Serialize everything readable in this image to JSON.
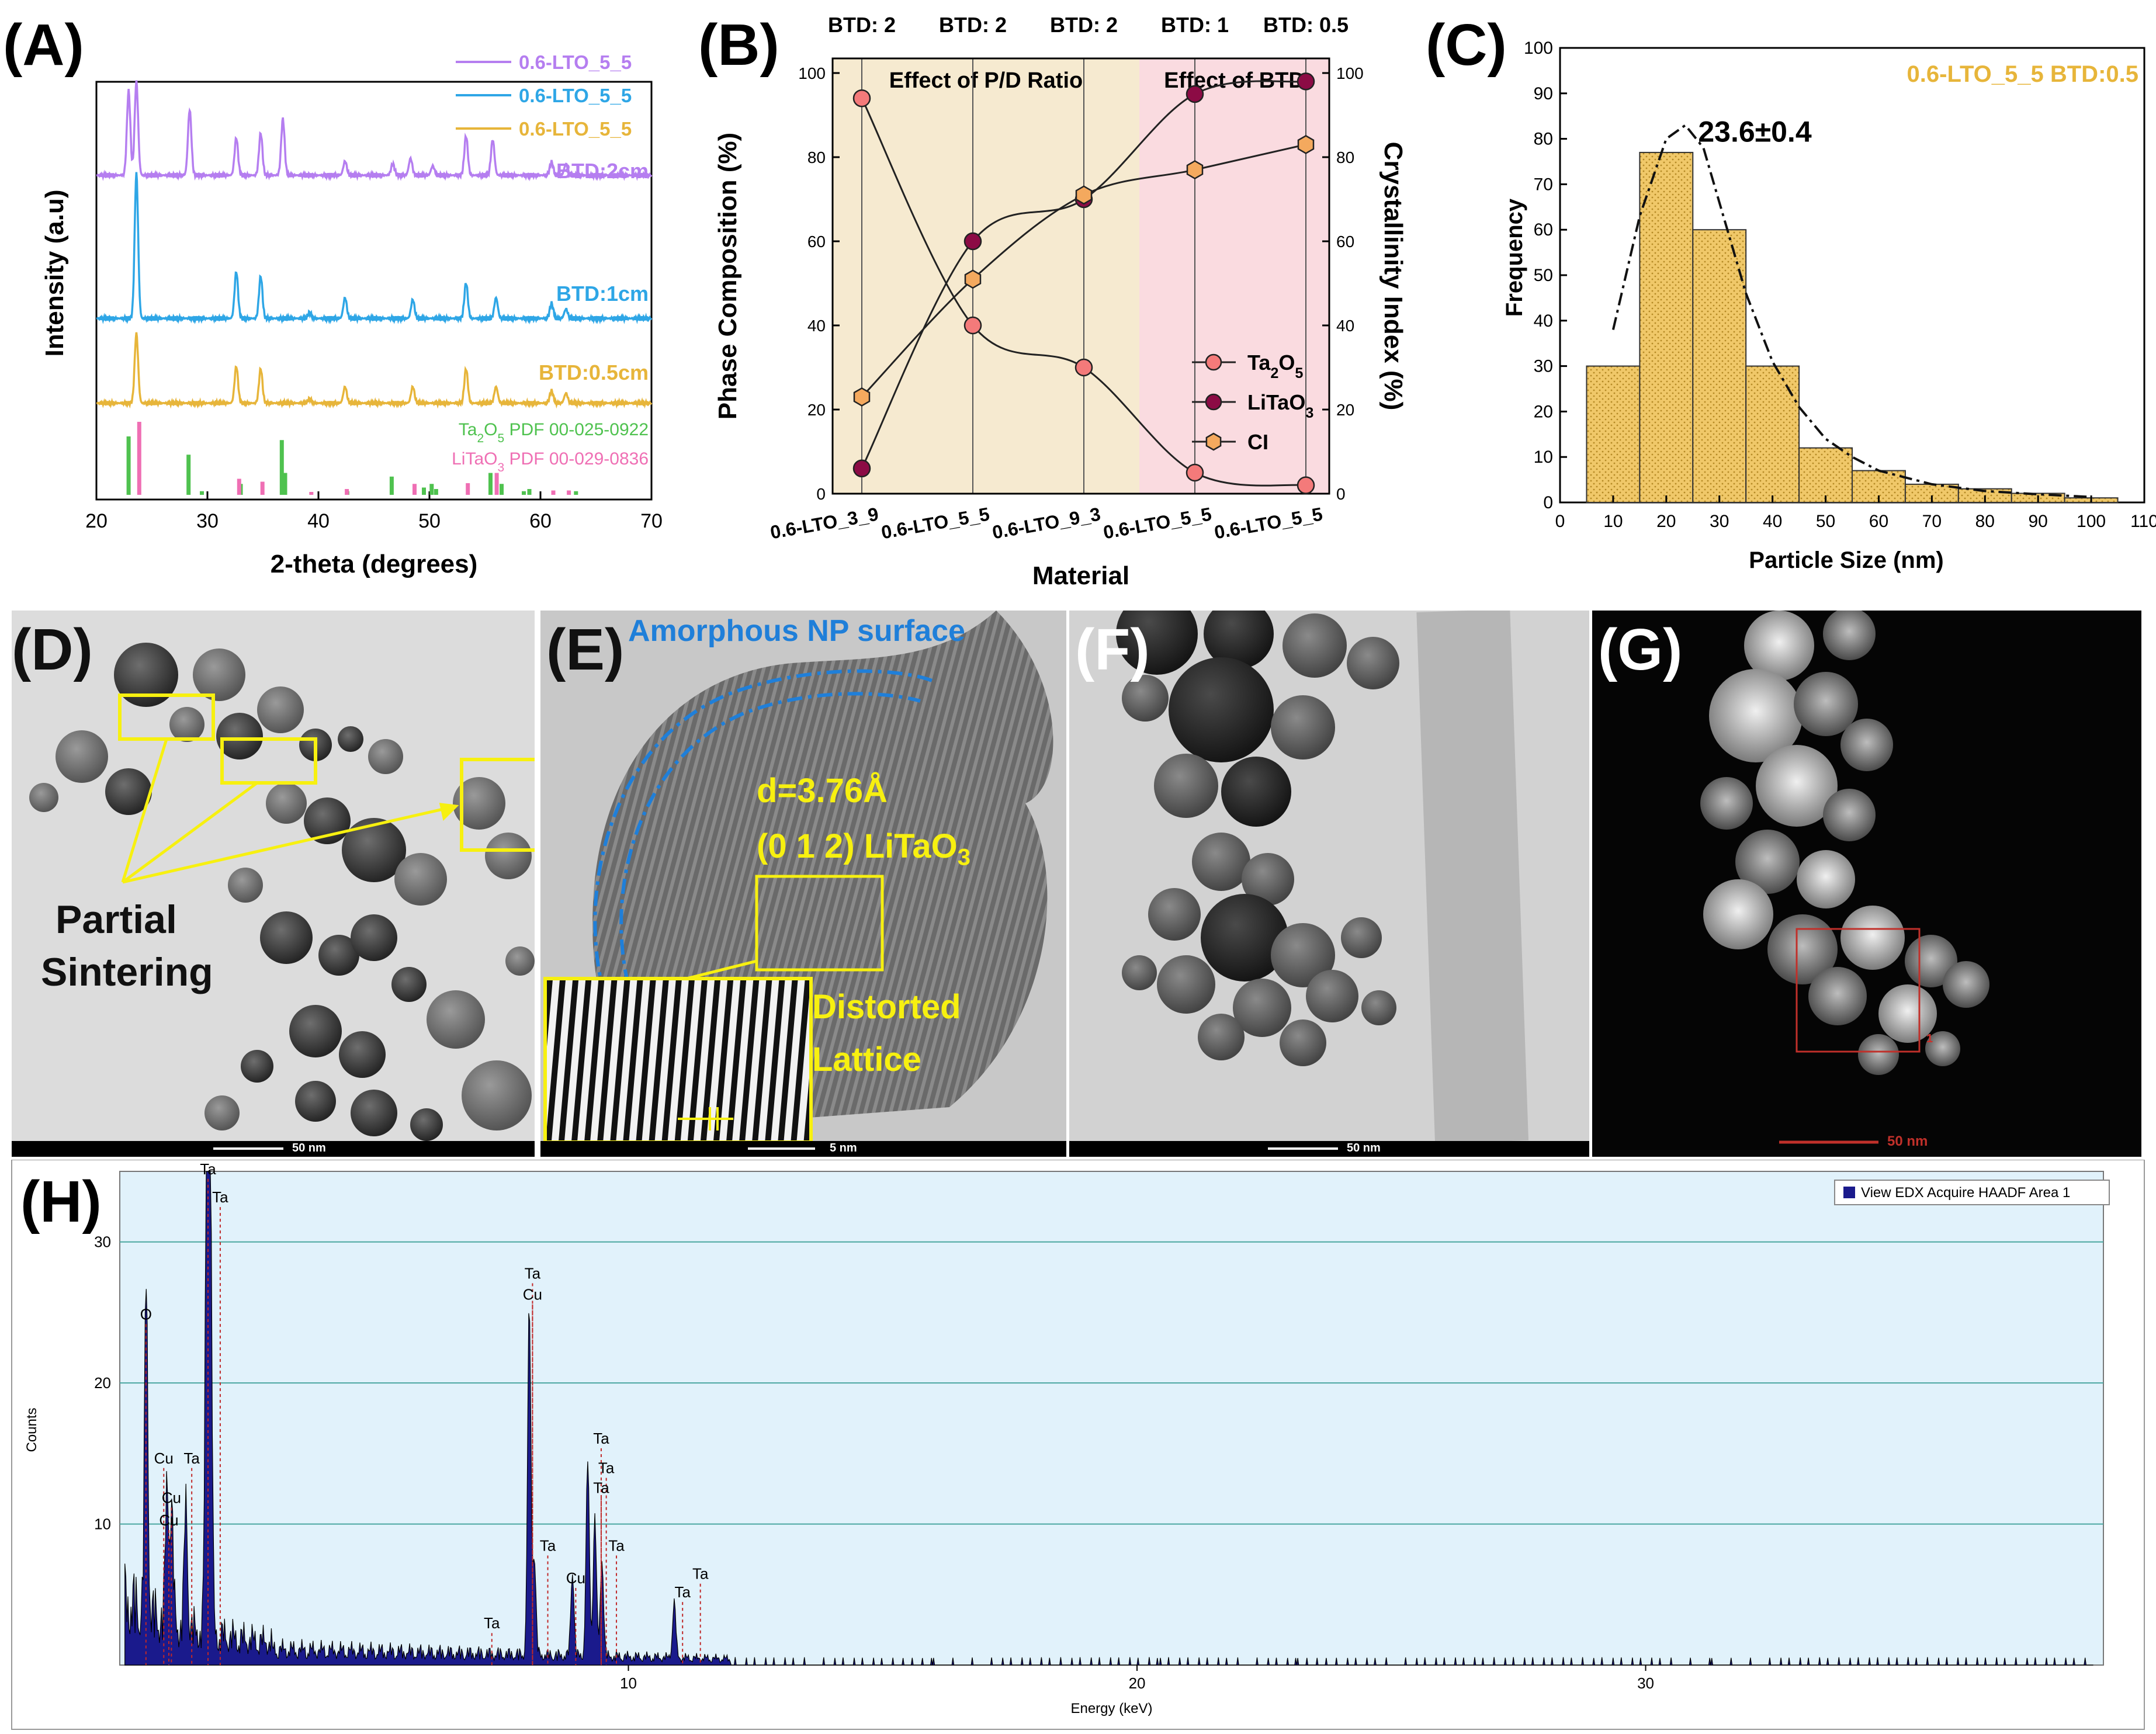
{
  "panel_labels": {
    "A": "(A)",
    "B": "(B)",
    "C": "(C)",
    "D": "(D)",
    "E": "(E)",
    "F": "(F)",
    "G": "(G)",
    "H": "(H)"
  },
  "colors": {
    "purple": "#b57ef0",
    "blue": "#2ea6e6",
    "gold": "#e7b53a",
    "ta2o5_ref": "#4fc24f",
    "litao3_ref": "#ef6fb4",
    "ta2o5_marker": "#f47a7a",
    "litao3_marker": "#8c0b45",
    "ci_marker": "#f4a95e",
    "pd_band": "#f6ead0",
    "btd_band": "#fadbe0",
    "hist_fill": "#f0c869",
    "edx_bg": "#e1f2fb",
    "edx_bar": "#1a1a8c",
    "yellow": "#f7f010",
    "amorph": "#1f7fd9"
  },
  "chart_data": [
    {
      "panel": "A",
      "type": "line",
      "xlabel": "2-theta (degrees)",
      "ylabel": "Intensity (a.u)",
      "xlim": [
        20,
        70
      ],
      "x_ticks": [
        "20",
        "30",
        "40",
        "50",
        "60",
        "70"
      ],
      "legend": [
        "0.6-LTO_5_5",
        "0.6-LTO_5_5",
        "0.6-LTO_5_5"
      ],
      "series": [
        {
          "name": "BTD:2cm",
          "label": "BTD:2cm",
          "color": "#b57ef0",
          "offset": 3.0,
          "peaks": [
            [
              22.9,
              0.9
            ],
            [
              23.6,
              1.0
            ],
            [
              28.4,
              0.7
            ],
            [
              32.6,
              0.4
            ],
            [
              34.8,
              0.45
            ],
            [
              36.8,
              0.6
            ],
            [
              42.4,
              0.15
            ],
            [
              46.7,
              0.12
            ],
            [
              48.3,
              0.18
            ],
            [
              50.3,
              0.1
            ],
            [
              53.3,
              0.42
            ],
            [
              55.7,
              0.38
            ],
            [
              61.0,
              0.14
            ],
            [
              62.3,
              0.12
            ]
          ]
        },
        {
          "name": "BTD:1cm",
          "label": "BTD:1cm",
          "color": "#2ea6e6",
          "offset": 1.85,
          "peaks": [
            [
              23.6,
              1.55
            ],
            [
              32.6,
              0.5
            ],
            [
              34.8,
              0.45
            ],
            [
              39.2,
              0.06
            ],
            [
              42.4,
              0.22
            ],
            [
              48.5,
              0.2
            ],
            [
              53.3,
              0.38
            ],
            [
              56.0,
              0.22
            ],
            [
              61.0,
              0.16
            ],
            [
              62.3,
              0.1
            ]
          ]
        },
        {
          "name": "BTD:0.5cm",
          "label": "BTD:0.5cm",
          "color": "#e7b53a",
          "offset": 0.95,
          "peaks": [
            [
              23.6,
              0.85
            ],
            [
              32.6,
              0.45
            ],
            [
              34.8,
              0.42
            ],
            [
              39.2,
              0.05
            ],
            [
              42.4,
              0.2
            ],
            [
              48.5,
              0.2
            ],
            [
              53.3,
              0.42
            ],
            [
              56.0,
              0.2
            ],
            [
              61.0,
              0.15
            ],
            [
              62.3,
              0.12
            ]
          ]
        }
      ],
      "references": [
        {
          "name": "Ta2O5 PDF 00-025-0922",
          "label_main": "Ta",
          "label_sub": "2",
          "label_main2": "O",
          "label_sub2": "5",
          "label_rest": " PDF 00-025-0922",
          "color": "#4fc24f",
          "lines": [
            [
              22.9,
              0.8
            ],
            [
              28.3,
              0.55
            ],
            [
              29.5,
              0.05
            ],
            [
              33.0,
              0.15
            ],
            [
              36.7,
              0.75
            ],
            [
              37.0,
              0.3
            ],
            [
              42.6,
              0.05
            ],
            [
              46.6,
              0.25
            ],
            [
              49.5,
              0.1
            ],
            [
              50.2,
              0.15
            ],
            [
              50.6,
              0.08
            ],
            [
              55.5,
              0.3
            ],
            [
              56.5,
              0.15
            ],
            [
              58.5,
              0.05
            ],
            [
              59.0,
              0.08
            ],
            [
              63.2,
              0.05
            ]
          ]
        },
        {
          "name": "LiTaO3 PDF 00-029-0836",
          "label_main": "LiTaO",
          "label_sub": "3",
          "label_main2": "",
          "label_sub2": "",
          "label_rest": " PDF 00-029-0836",
          "color": "#ef6fb4",
          "lines": [
            [
              23.7,
              1.0
            ],
            [
              32.7,
              0.22
            ],
            [
              34.8,
              0.18
            ],
            [
              39.2,
              0.04
            ],
            [
              42.4,
              0.08
            ],
            [
              48.5,
              0.15
            ],
            [
              53.3,
              0.16
            ],
            [
              55.9,
              0.3
            ],
            [
              61.0,
              0.06
            ],
            [
              62.4,
              0.06
            ]
          ]
        }
      ]
    },
    {
      "panel": "B",
      "type": "line",
      "xlabel": "Material",
      "ylabel_left": "Phase Composition (%)",
      "ylabel_right": "Crystallinity Index (%)",
      "categories": [
        "0.6-LTO_3_9",
        "0.6-LTO_5_5",
        "0.6-LTO_9_3",
        "0.6-LTO_5_5",
        "0.6-LTO_5_5"
      ],
      "top_labels": [
        "BTD: 2",
        "BTD: 2",
        "BTD: 2",
        "BTD: 1",
        "BTD: 0.5"
      ],
      "bands": [
        {
          "label": "Effect of P/D Ratio",
          "from": 0,
          "to": 2.5
        },
        {
          "label": "Effect of BTD",
          "from": 2.5,
          "to": 4
        }
      ],
      "ylim": [
        0,
        100
      ],
      "y_ticks": [
        "0",
        "20",
        "40",
        "60",
        "80",
        "100"
      ],
      "series": [
        {
          "name": "Ta2O5",
          "values": [
            94,
            40,
            30,
            5,
            2
          ]
        },
        {
          "name": "LiTaO3",
          "values": [
            6,
            60,
            70,
            95,
            98
          ]
        },
        {
          "name": "CI",
          "values": [
            23,
            51,
            71,
            77,
            83
          ]
        }
      ],
      "legend": [
        {
          "main": "Ta",
          "sub": "2",
          "main2": "O",
          "sub2": "5"
        },
        {
          "main": "LiTaO",
          "sub": "3",
          "main2": "",
          "sub2": ""
        },
        {
          "main": "CI",
          "sub": "",
          "main2": "",
          "sub2": ""
        }
      ]
    },
    {
      "panel": "C",
      "type": "bar",
      "title": "0.6-LTO_5_5 BTD:0.5",
      "annotation": "23.6±0.4",
      "xlabel": "Particle Size (nm)",
      "ylabel": "Frequency",
      "xlim": [
        0,
        110
      ],
      "ylim": [
        0,
        100
      ],
      "x_ticks": [
        "0",
        "10",
        "20",
        "30",
        "40",
        "50",
        "60",
        "70",
        "80",
        "90",
        "100",
        "110"
      ],
      "y_ticks": [
        "0",
        "10",
        "20",
        "30",
        "40",
        "50",
        "60",
        "70",
        "80",
        "90",
        "100"
      ],
      "bin_edges": [
        5,
        15,
        25,
        35,
        45,
        55,
        65,
        75,
        85,
        95,
        105
      ],
      "values": [
        30,
        77,
        60,
        30,
        12,
        7,
        4,
        3,
        2,
        1
      ],
      "fit": [
        [
          10,
          38
        ],
        [
          15,
          63
        ],
        [
          20,
          80
        ],
        [
          23.6,
          83
        ],
        [
          27,
          78
        ],
        [
          30,
          66
        ],
        [
          35,
          46
        ],
        [
          40,
          31
        ],
        [
          45,
          21
        ],
        [
          50,
          14
        ],
        [
          55,
          10
        ],
        [
          60,
          7
        ],
        [
          70,
          4
        ],
        [
          80,
          2.5
        ],
        [
          90,
          1.8
        ],
        [
          100,
          1.2
        ]
      ]
    },
    {
      "panel": "H",
      "type": "bar",
      "legend": "View EDX Acquire HAADF Area 1",
      "xlabel": "Energy (keV)",
      "ylabel": "Counts",
      "xlim": [
        0,
        39
      ],
      "ylim": [
        0,
        35
      ],
      "x_ticks": [
        "10",
        "20",
        "30"
      ],
      "y_ticks": [
        "10",
        "20",
        "30"
      ],
      "peaks": [
        [
          0.52,
          24
        ],
        [
          0.93,
          10
        ],
        [
          1.02,
          8
        ],
        [
          1.3,
          9
        ],
        [
          1.71,
          34
        ],
        [
          1.78,
          33
        ],
        [
          8.05,
          25
        ],
        [
          8.9,
          6
        ],
        [
          8.15,
          7
        ],
        [
          9.34,
          10
        ],
        [
          9.48,
          7
        ],
        [
          10.9,
          4
        ],
        [
          9.2,
          14
        ]
      ],
      "peak_labels": [
        {
          "text": "O",
          "x": 0.4,
          "y": 24.5
        },
        {
          "text": "Cu",
          "x": 0.75,
          "y": 14.3
        },
        {
          "text": "Cu",
          "x": 0.9,
          "y": 11.5
        },
        {
          "text": "Cu",
          "x": 0.85,
          "y": 9.9
        },
        {
          "text": "Ta",
          "x": 1.3,
          "y": 14.3
        },
        {
          "text": "Ta",
          "x": 1.62,
          "y": 34.8
        },
        {
          "text": "Ta",
          "x": 1.86,
          "y": 32.8
        },
        {
          "text": "Ta",
          "x": 7.2,
          "y": 2.6
        },
        {
          "text": "Ta",
          "x": 8.0,
          "y": 27.4
        },
        {
          "text": "Cu",
          "x": 8.0,
          "y": 25.9
        },
        {
          "text": "Ta",
          "x": 8.3,
          "y": 8.1
        },
        {
          "text": "Cu",
          "x": 8.85,
          "y": 5.8
        },
        {
          "text": "Ta",
          "x": 9.35,
          "y": 15.7
        },
        {
          "text": "Ta",
          "x": 9.45,
          "y": 13.6
        },
        {
          "text": "Ta",
          "x": 9.35,
          "y": 12.2
        },
        {
          "text": "Ta",
          "x": 9.65,
          "y": 8.1
        },
        {
          "text": "Ta",
          "x": 10.95,
          "y": 4.8
        },
        {
          "text": "Ta",
          "x": 11.3,
          "y": 6.1
        }
      ]
    }
  ],
  "micrographs": {
    "D": {
      "scale": "50 nm",
      "annotation_line1": "Partial",
      "annotation_line2": "Sintering"
    },
    "E": {
      "scale": "5 nm",
      "amorphous": "Amorphous NP surface",
      "d_spacing": "d=3.76Å",
      "plane_main": "(0 1 2) LiTaO",
      "plane_sub": "3",
      "distorted1": "Distorted",
      "distorted2": "Lattice"
    },
    "F": {
      "scale": "50 nm"
    },
    "G": {
      "scale": "50 nm",
      "area_id": "1"
    }
  }
}
